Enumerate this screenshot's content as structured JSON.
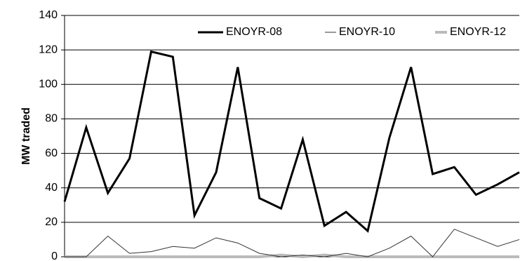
{
  "chart_data": {
    "type": "line",
    "ylabel": "MW traded",
    "categories": [
      null,
      null,
      null,
      null,
      null,
      null,
      null,
      null,
      null,
      null,
      null,
      null,
      null,
      null,
      null,
      null,
      null,
      null,
      null,
      null,
      null,
      null
    ],
    "series": [
      {
        "name": "ENOYR-08",
        "color": "#000000",
        "width": 3,
        "values": [
          32,
          75,
          37,
          57,
          119,
          116,
          24,
          49,
          110,
          34,
          28,
          68,
          18,
          26,
          15,
          69,
          110,
          48,
          52,
          36,
          42,
          49
        ]
      },
      {
        "name": "ENOYR-10",
        "color": "#333333",
        "width": 1,
        "values": [
          0,
          0,
          12,
          2,
          3,
          6,
          5,
          11,
          8,
          2,
          0,
          1,
          0,
          2,
          0,
          5,
          12,
          0,
          16,
          11,
          6,
          10
        ]
      },
      {
        "name": "ENOYR-12",
        "color": "#bbbbbb",
        "width": 4,
        "values": [
          0,
          0,
          0,
          0,
          0,
          0,
          0,
          0,
          0,
          0,
          1,
          0,
          1,
          0,
          0,
          0,
          0,
          0,
          0,
          0,
          0,
          0
        ]
      }
    ],
    "ylim": [
      0,
      140
    ],
    "yticks": [
      0,
      20,
      40,
      60,
      80,
      100,
      120,
      140
    ],
    "grid": true,
    "legend": "top-right"
  }
}
